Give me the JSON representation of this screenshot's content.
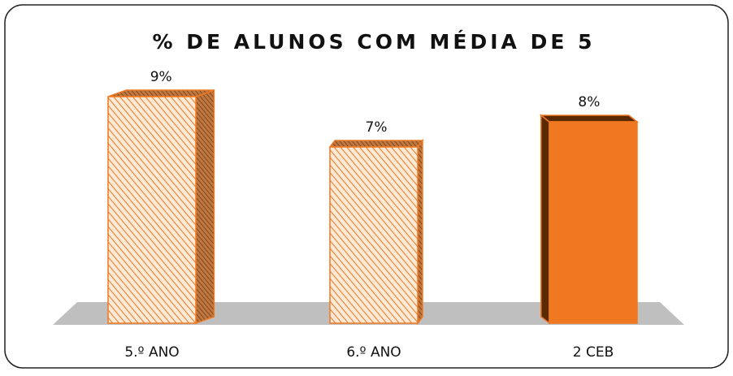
{
  "chart_data": {
    "type": "bar3d",
    "title": "% DE ALUNOS COM MÉDIA DE 5",
    "categories": [
      "5.º ANO",
      "6.º ANO",
      "2 CEB"
    ],
    "values": [
      9,
      7,
      8
    ],
    "value_labels": [
      "9%",
      "7%",
      "8%"
    ],
    "color": "#f07820",
    "patterns": [
      "hatch",
      "hatch",
      "solid"
    ]
  }
}
